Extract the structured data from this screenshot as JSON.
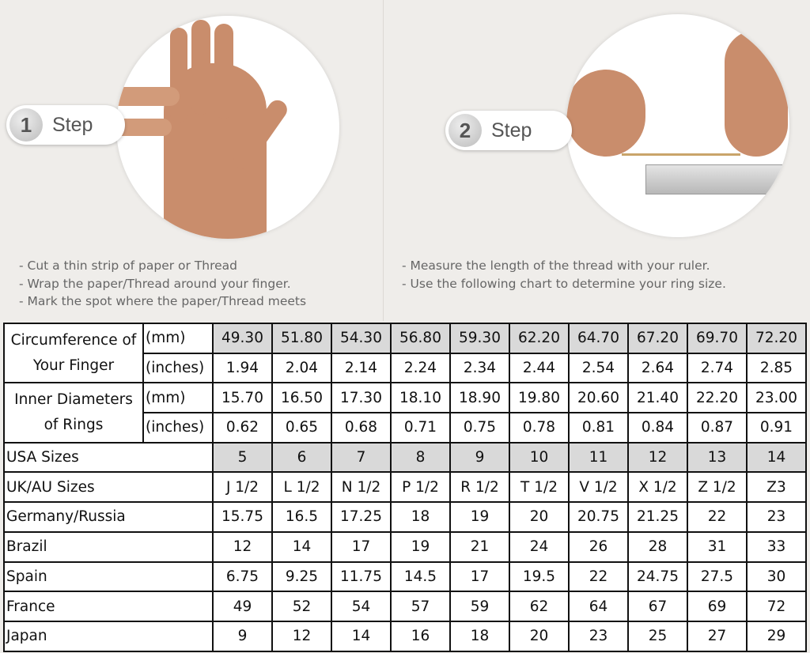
{
  "steps": [
    {
      "number": "1",
      "label": "Step",
      "instructions": [
        "-  Cut a thin strip of paper or Thread",
        "-  Wrap the paper/Thread around your finger.",
        "-  Mark the spot where the paper/Thread meets"
      ]
    },
    {
      "number": "2",
      "label": "Step",
      "instructions": [
        "-  Measure the length of the thread with your ruler.",
        "-  Use the following chart to determine your ring size."
      ]
    }
  ],
  "table": {
    "circumference": {
      "label": "Circumference of Your Finger",
      "mm_label": "(mm)",
      "in_label": "(inches)",
      "mm": [
        "49.30",
        "51.80",
        "54.30",
        "56.80",
        "59.30",
        "62.20",
        "64.70",
        "67.20",
        "69.70",
        "72.20"
      ],
      "in": [
        "1.94",
        "2.04",
        "2.14",
        "2.24",
        "2.34",
        "2.44",
        "2.54",
        "2.64",
        "2.74",
        "2.85"
      ]
    },
    "diameter": {
      "label": "Inner Diameters of Rings",
      "mm_label": "(mm)",
      "in_label": "(inches)",
      "mm": [
        "15.70",
        "16.50",
        "17.30",
        "18.10",
        "18.90",
        "19.80",
        "20.60",
        "21.40",
        "22.20",
        "23.00"
      ],
      "in": [
        "0.62",
        "0.65",
        "0.68",
        "0.71",
        "0.75",
        "0.78",
        "0.81",
        "0.84",
        "0.87",
        "0.91"
      ]
    },
    "sizes": [
      {
        "label": "USA Sizes",
        "values": [
          "5",
          "6",
          "7",
          "8",
          "9",
          "10",
          "11",
          "12",
          "13",
          "14"
        ],
        "highlight": true
      },
      {
        "label": "UK/AU Sizes",
        "values": [
          "J 1/2",
          "L 1/2",
          "N 1/2",
          "P 1/2",
          "R 1/2",
          "T 1/2",
          "V 1/2",
          "X 1/2",
          "Z 1/2",
          "Z3"
        ]
      },
      {
        "label": "Germany/Russia",
        "values": [
          "15.75",
          "16.5",
          "17.25",
          "18",
          "19",
          "20",
          "20.75",
          "21.25",
          "22",
          "23"
        ]
      },
      {
        "label": "Brazil",
        "values": [
          "12",
          "14",
          "17",
          "19",
          "21",
          "24",
          "26",
          "28",
          "31",
          "33"
        ]
      },
      {
        "label": "Spain",
        "values": [
          "6.75",
          "9.25",
          "11.75",
          "14.5",
          "17",
          "19.5",
          "22",
          "24.75",
          "27.5",
          "30"
        ]
      },
      {
        "label": "France",
        "values": [
          "49",
          "52",
          "54",
          "57",
          "59",
          "62",
          "64",
          "67",
          "69",
          "72"
        ]
      },
      {
        "label": "Japan",
        "values": [
          "9",
          "12",
          "14",
          "16",
          "18",
          "20",
          "23",
          "25",
          "27",
          "29"
        ]
      }
    ]
  }
}
